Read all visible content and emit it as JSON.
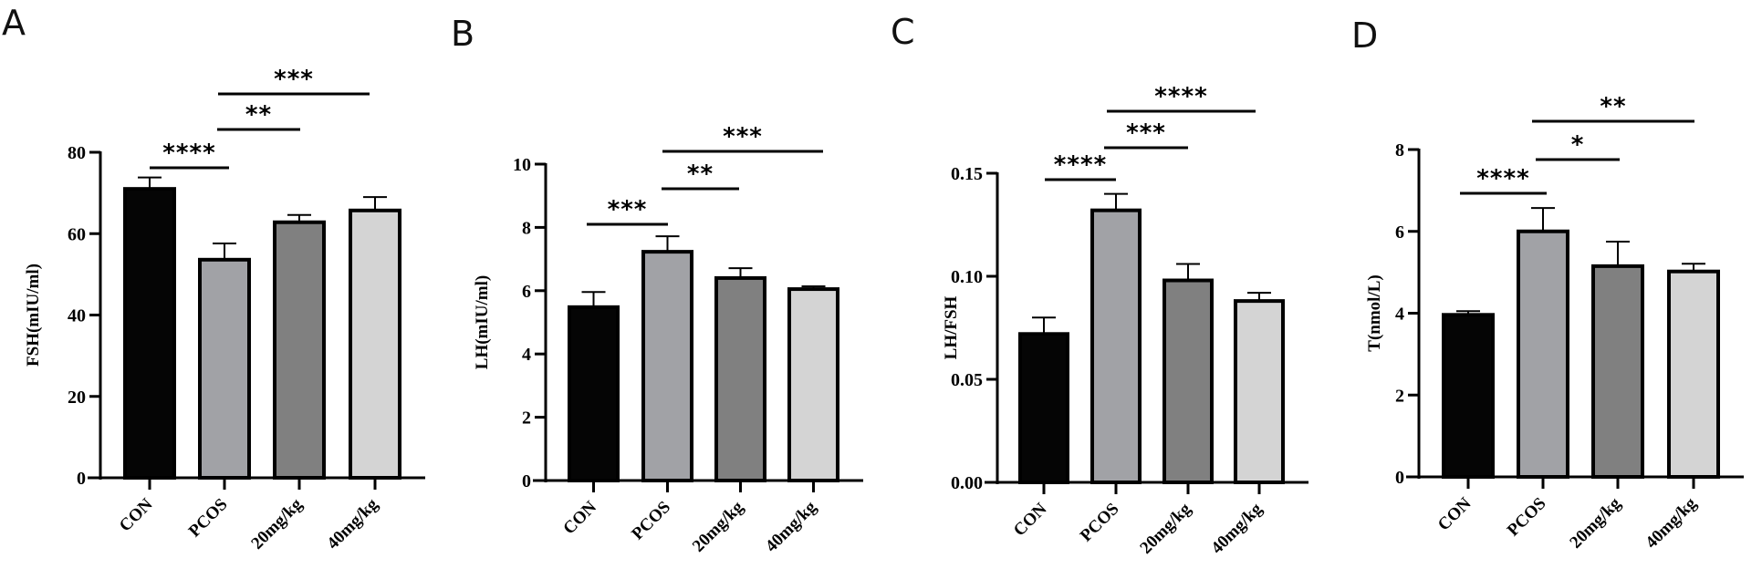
{
  "chart_data": [
    {
      "type": "bar",
      "panel": "A",
      "title": "",
      "xlabel": "",
      "ylabel": "FSH(mIU/ml)",
      "ylim": [
        0,
        80
      ],
      "yticks": [
        0,
        20,
        40,
        60,
        80
      ],
      "ytick_labels": [
        "0",
        "20",
        "40",
        "60",
        "80"
      ],
      "categories": [
        "CON",
        "PCOS",
        "20mg/kg",
        "40mg/kg"
      ],
      "values": [
        71.0,
        53.6,
        62.8,
        65.7
      ],
      "errors": [
        2.8,
        4.0,
        1.8,
        3.3
      ],
      "grid": false,
      "significance": [
        {
          "from": 0,
          "to": 1,
          "label": "****"
        },
        {
          "from": 1,
          "to": 2,
          "label": "**"
        },
        {
          "from": 1,
          "to": 3,
          "label": "***"
        }
      ]
    },
    {
      "type": "bar",
      "panel": "B",
      "title": "",
      "xlabel": "",
      "ylabel": "LH(mIU/ml)",
      "ylim": [
        0,
        10
      ],
      "yticks": [
        0,
        2,
        4,
        6,
        8,
        10
      ],
      "ytick_labels": [
        "0",
        "2",
        "4",
        "6",
        "8",
        "10"
      ],
      "categories": [
        "CON",
        "PCOS",
        "20mg/kg",
        "40mg/kg"
      ],
      "values": [
        5.48,
        7.23,
        6.4,
        6.05
      ],
      "errors": [
        0.48,
        0.49,
        0.31,
        0.09
      ],
      "grid": false,
      "significance": [
        {
          "from": 0,
          "to": 1,
          "label": "***"
        },
        {
          "from": 1,
          "to": 2,
          "label": "**"
        },
        {
          "from": 1,
          "to": 3,
          "label": "***"
        }
      ]
    },
    {
      "type": "bar",
      "panel": "C",
      "title": "",
      "xlabel": "",
      "ylabel": "LH/FSH",
      "ylim": [
        0,
        0.15
      ],
      "yticks": [
        0,
        0.05,
        0.1,
        0.15
      ],
      "ytick_labels": [
        "0.00",
        "0.05",
        "0.10",
        "0.15"
      ],
      "categories": [
        "CON",
        "PCOS",
        "20mg/kg",
        "40mg/kg"
      ],
      "values": [
        0.072,
        0.132,
        0.098,
        0.088
      ],
      "errors": [
        0.008,
        0.008,
        0.008,
        0.004
      ],
      "grid": false,
      "significance": [
        {
          "from": 0,
          "to": 1,
          "label": "****"
        },
        {
          "from": 1,
          "to": 2,
          "label": "***"
        },
        {
          "from": 1,
          "to": 3,
          "label": "****"
        }
      ]
    },
    {
      "type": "bar",
      "panel": "D",
      "title": "",
      "xlabel": "",
      "ylabel": "T(nmol/L)",
      "ylim": [
        0,
        8
      ],
      "yticks": [
        0,
        2,
        4,
        6,
        8
      ],
      "ytick_labels": [
        "0",
        "2",
        "4",
        "6",
        "8"
      ],
      "categories": [
        "CON",
        "PCOS",
        "20mg/kg",
        "40mg/kg"
      ],
      "values": [
        3.96,
        6.0,
        5.15,
        5.02
      ],
      "errors": [
        0.09,
        0.57,
        0.6,
        0.19
      ],
      "grid": false,
      "significance": [
        {
          "from": 0,
          "to": 1,
          "label": "****"
        },
        {
          "from": 1,
          "to": 2,
          "label": "*"
        },
        {
          "from": 1,
          "to": 3,
          "label": "**"
        }
      ]
    }
  ],
  "bar_colors": [
    "#050505",
    "#a1a2a6",
    "#808080",
    "#d4d4d4"
  ],
  "panels": [
    "A",
    "B",
    "C",
    "D"
  ]
}
